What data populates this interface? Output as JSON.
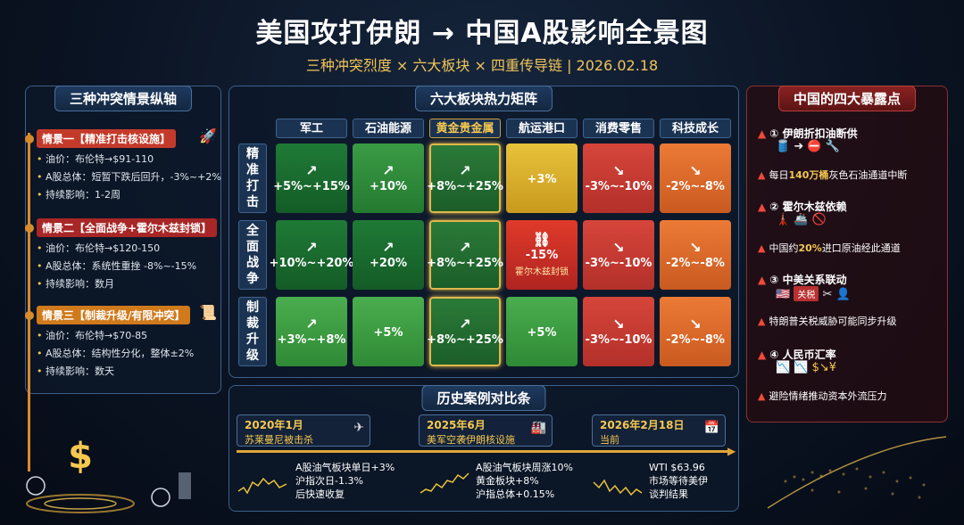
{
  "header": {
    "title": "美国攻打伊朗 → 中国A股影响全景图",
    "subtitle": "三种冲突烈度 × 六大板块 × 四重传导链 | 2026.02.18"
  },
  "scenarios": {
    "title": "三种冲突情景纵轴",
    "items": [
      {
        "tag": "情景一【精准打击核设施】",
        "oil": "油价：布伦特→$91-110",
        "ashare": "A股总体：短暂下跌后回升，-3%~+2%",
        "duration": "持续影响：1-2周",
        "icon": "rocket-icon"
      },
      {
        "tag": "情景二【全面战争+霍尔木兹封锁】",
        "oil": "油价：布伦特→$120-150",
        "ashare": "A股总体：系统性重挫 -8%~-15%",
        "duration": "持续影响：数月",
        "icon": "explosion-icon"
      },
      {
        "tag": "情景三【制裁升级/有限冲突】",
        "oil": "油价：布伦特→$70-85",
        "ashare": "A股总体：结构性分化，整体±2%",
        "duration": "持续影响：数天",
        "icon": "scroll-icon"
      }
    ]
  },
  "matrix": {
    "title": "六大板块热力矩阵",
    "columns": [
      "军工",
      "石油能源",
      "黄金贵金属",
      "航运港口",
      "消费零售",
      "科技成长"
    ],
    "rows": [
      "精准打击",
      "全面战争",
      "制裁升级"
    ],
    "cells": [
      [
        {
          "value": "+5%~+15%",
          "arrow": "↗",
          "color": "c-dg"
        },
        {
          "value": "+10%",
          "arrow": "↗",
          "color": "c-mg"
        },
        {
          "value": "+8%~+25%",
          "arrow": "↗",
          "color": "c-gold"
        },
        {
          "value": "+3%",
          "arrow": "",
          "color": "c-y"
        },
        {
          "value": "-3%~-10%",
          "arrow": "↘",
          "color": "c-rr"
        },
        {
          "value": "-2%~-8%",
          "arrow": "↘",
          "color": "c-or"
        }
      ],
      [
        {
          "value": "+10%~+20%",
          "arrow": "↗",
          "color": "c-dg"
        },
        {
          "value": "+20%",
          "arrow": "↗",
          "color": "c-dg"
        },
        {
          "value": "+8%~+25%",
          "arrow": "↗",
          "color": "c-gold"
        },
        {
          "value": "-15%",
          "arrow": "⛓",
          "color": "c-r",
          "note": "霍尔木兹封锁"
        },
        {
          "value": "-3%~-10%",
          "arrow": "↘",
          "color": "c-rr"
        },
        {
          "value": "-2%~-8%",
          "arrow": "↘",
          "color": "c-or"
        }
      ],
      [
        {
          "value": "+3%~+8%",
          "arrow": "↗",
          "color": "c-lg"
        },
        {
          "value": "+5%",
          "arrow": "",
          "color": "c-lg"
        },
        {
          "value": "+8%~+25%",
          "arrow": "↗",
          "color": "c-gold"
        },
        {
          "value": "+5%",
          "arrow": "",
          "color": "c-lg"
        },
        {
          "value": "-3%~-10%",
          "arrow": "↘",
          "color": "c-rr"
        },
        {
          "value": "-2%~-8%",
          "arrow": "↘",
          "color": "c-or"
        }
      ]
    ]
  },
  "exposure": {
    "title": "中国的四大暴露点",
    "items": [
      {
        "head": "① 伊朗折扣油断供",
        "desc_pre": "每日",
        "desc_hl": "140万桶",
        "desc_post": "灰色石油通道中断"
      },
      {
        "head": "② 霍尔木兹依赖",
        "desc_pre": "中国约",
        "desc_hl": "20%",
        "desc_post": "进口原油经此通道"
      },
      {
        "head": "③ 中美关系联动",
        "desc_pre": "",
        "desc_hl": "",
        "desc_post": "特朗普关税威胁可能同步升级",
        "tag": "关税"
      },
      {
        "head": "④ 人民币汇率",
        "desc_pre": "",
        "desc_hl": "",
        "desc_post": "避险情绪推动资本外流压力"
      }
    ]
  },
  "history": {
    "title": "历史案例对比条",
    "cases": [
      {
        "date": "2020年1月",
        "event": "苏莱曼尼被击杀",
        "icon": "drone-icon",
        "details": [
          "A股油气板块单日+3%",
          "沪指次日-1.3%",
          "后快速收复"
        ]
      },
      {
        "date": "2025年6月",
        "event": "美军空袭伊朗核设施",
        "icon": "factory-icon",
        "details": [
          "A股油气板块周涨10%",
          "黄金板块+8%",
          "沪指总体+0.15%"
        ]
      },
      {
        "date": "2026年2月18日",
        "event": "当前",
        "icon": "calendar-icon",
        "details": [
          "WTI $63.96",
          "市场等待美伊",
          "谈判结果"
        ]
      }
    ]
  }
}
